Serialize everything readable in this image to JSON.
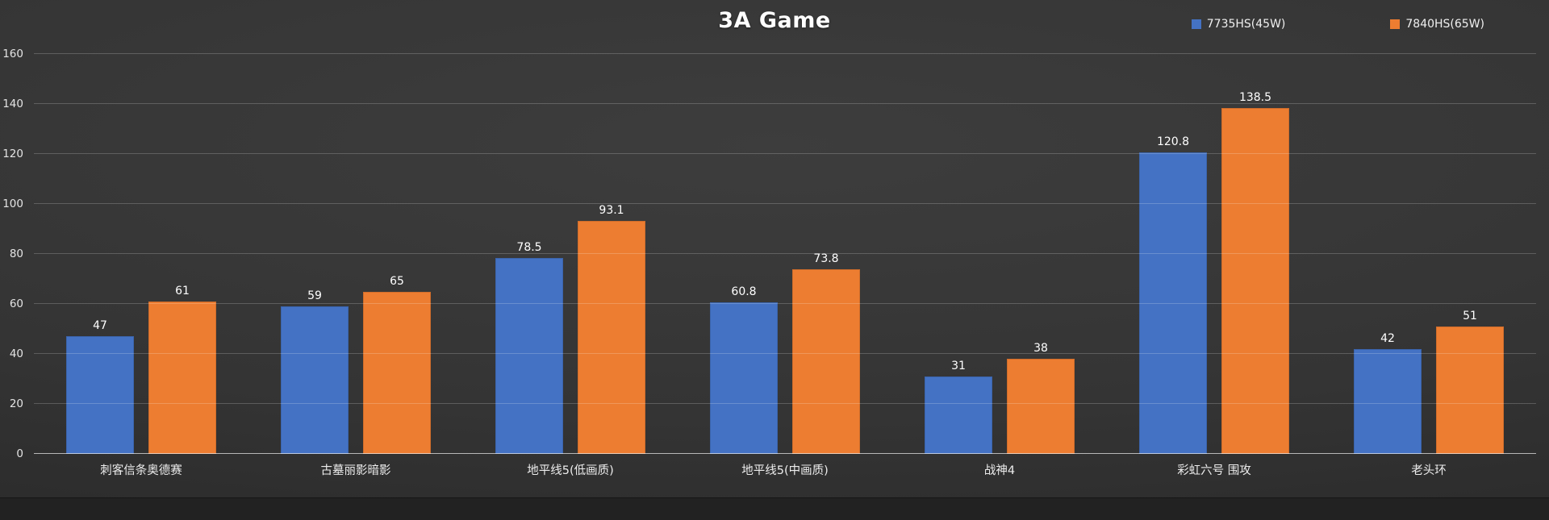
{
  "chart_data": {
    "type": "bar",
    "title": "3A Game",
    "categories": [
      "刺客信条奥德赛",
      "古墓丽影暗影",
      "地平线5(低画质)",
      "地平线5(中画质)",
      "战神4",
      "彩虹六号 围攻",
      "老头环"
    ],
    "series": [
      {
        "name": "7735HS(45W)",
        "color": "#4472C4",
        "values": [
          47,
          59,
          78.5,
          60.8,
          31,
          120.8,
          42
        ]
      },
      {
        "name": "7840HS(65W)",
        "color": "#ED7D31",
        "values": [
          61,
          65,
          93.1,
          73.8,
          38,
          138.5,
          51
        ]
      }
    ],
    "xlabel": "",
    "ylabel": "",
    "ylim": [
      0,
      160
    ],
    "y_ticks": [
      0,
      20,
      40,
      60,
      80,
      100,
      120,
      140,
      160
    ],
    "grid": true,
    "legend_position": "top-right",
    "value_labels_shown": true
  }
}
